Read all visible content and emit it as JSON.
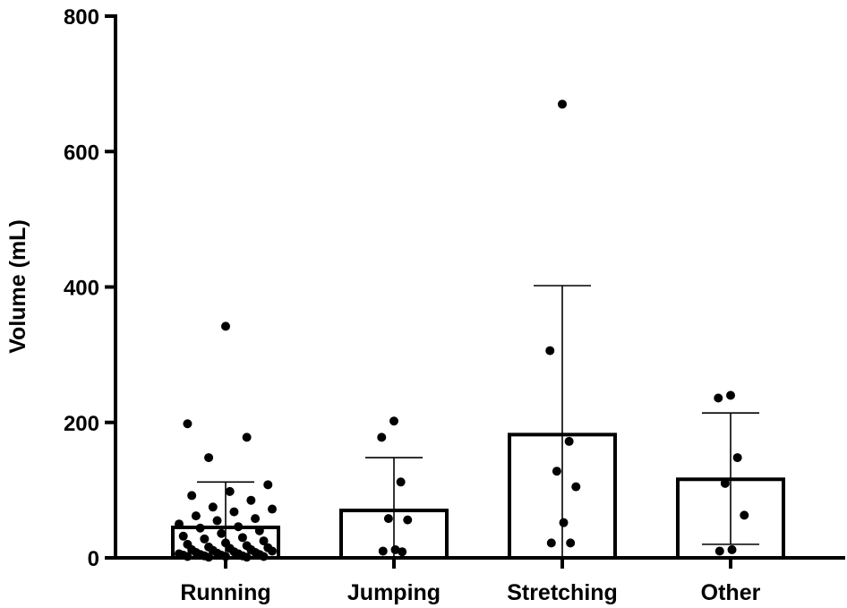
{
  "chart_data": {
    "type": "bar",
    "title": "",
    "xlabel": "",
    "ylabel": "Volume (mL)",
    "ylim": [
      0,
      800
    ],
    "yticks": [
      0,
      200,
      400,
      600,
      800
    ],
    "grid": false,
    "legend": "none",
    "colors": {
      "bar_fill": "#ffffff",
      "bar_stroke": "#000000",
      "point": "#000000",
      "error": "#000000"
    },
    "categories": [
      "Running",
      "Jumping",
      "Stretching",
      "Other"
    ],
    "values": [
      45,
      70,
      182,
      116
    ],
    "error_upper": [
      112,
      148,
      402,
      214
    ],
    "error_lower": [
      0,
      0,
      0,
      20
    ],
    "points": [
      [
        342,
        198,
        178,
        148,
        108,
        98,
        92,
        85,
        75,
        72,
        68,
        62,
        58,
        55,
        50,
        46,
        44,
        40,
        36,
        32,
        30,
        28,
        25,
        22,
        20,
        18,
        16,
        15,
        14,
        12,
        12,
        11,
        10,
        9,
        8,
        8,
        7,
        6,
        6,
        5,
        5,
        4,
        4,
        3,
        3,
        2,
        2,
        2,
        1,
        1
      ],
      [
        202,
        178,
        112,
        58,
        56,
        12,
        10,
        9
      ],
      [
        670,
        306,
        172,
        128,
        105,
        52,
        22,
        22
      ],
      [
        240,
        236,
        148,
        110,
        63,
        12,
        10
      ]
    ]
  }
}
